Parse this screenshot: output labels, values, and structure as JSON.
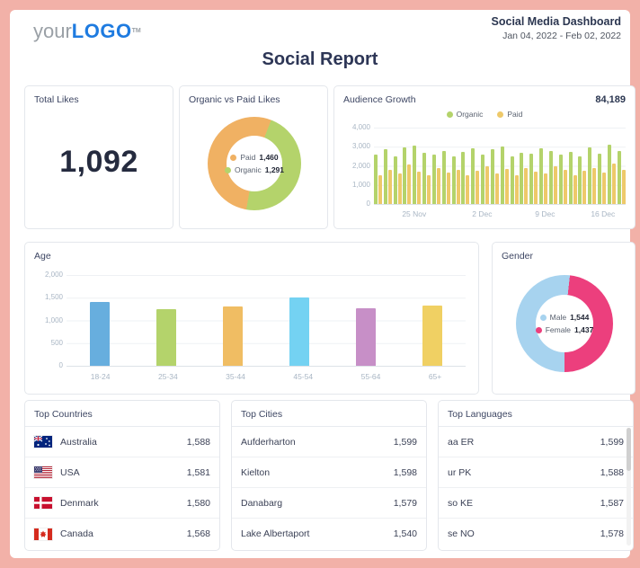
{
  "header": {
    "logo_prefix": "your",
    "logo_main": "LOGO",
    "logo_tm": "TM",
    "title": "Social Media Dashboard",
    "date_range": "Jan 04, 2022 - Feb 02, 2022"
  },
  "report_title": "Social Report",
  "total_likes": {
    "title": "Total Likes",
    "value": "1,092"
  },
  "chart_data": [
    {
      "id": "organic_vs_paid",
      "type": "pie",
      "title": "Organic vs Paid Likes",
      "legend_position": "center",
      "series": [
        {
          "name": "Paid",
          "value": 1460,
          "label": "1,460",
          "color": "#f0b163"
        },
        {
          "name": "Organic",
          "value": 1291,
          "label": "1,291",
          "color": "#b4d36b"
        }
      ]
    },
    {
      "id": "audience_growth",
      "type": "bar",
      "title": "Audience Growth",
      "total_label": "84,189",
      "ylim": [
        0,
        4000
      ],
      "yticks": [
        "0",
        "1,000",
        "2,000",
        "3,000",
        "4,000"
      ],
      "xticks": [
        {
          "label": "25 Nov",
          "pos": 16
        },
        {
          "label": "2 Dec",
          "pos": 43
        },
        {
          "label": "9 Dec",
          "pos": 68
        },
        {
          "label": "16 Dec",
          "pos": 91
        }
      ],
      "legend_position": "top",
      "grid": true,
      "series": [
        {
          "name": "Organic",
          "color": "#b4d36b",
          "values": [
            2600,
            2850,
            2500,
            2950,
            3050,
            2700,
            2600,
            2800,
            2500,
            2750,
            2900,
            2600,
            2850,
            3000,
            2500,
            2700,
            2650,
            2900,
            2800,
            2600,
            2750,
            2500,
            2950,
            2650,
            3100,
            2800
          ]
        },
        {
          "name": "Paid",
          "color": "#eec96a",
          "values": [
            1500,
            1800,
            1600,
            2050,
            1700,
            1500,
            1900,
            1650,
            1800,
            1500,
            1750,
            2000,
            1600,
            1850,
            1500,
            1900,
            1700,
            1600,
            2000,
            1800,
            1500,
            1750,
            1900,
            1650,
            2100,
            1800
          ]
        }
      ]
    },
    {
      "id": "age",
      "type": "bar",
      "title": "Age",
      "ylim": [
        0,
        2000
      ],
      "yticks": [
        "0",
        "500",
        "1,000",
        "1,500",
        "2,000"
      ],
      "grid": true,
      "categories": [
        "18-24",
        "25-34",
        "35-44",
        "45-54",
        "55-64",
        "65+"
      ],
      "values": [
        1400,
        1250,
        1310,
        1500,
        1260,
        1320
      ],
      "colors": [
        "#67aede",
        "#b4d36b",
        "#f0bd63",
        "#74d2f2",
        "#c78fc7",
        "#f0d063"
      ]
    },
    {
      "id": "gender",
      "type": "pie",
      "title": "Gender",
      "legend_position": "center",
      "series": [
        {
          "name": "Male",
          "value": 1544,
          "label": "1,544",
          "color": "#a7d3ef"
        },
        {
          "name": "Female",
          "value": 1437,
          "label": "1,437",
          "color": "#ec3f7d"
        }
      ]
    }
  ],
  "top_countries": {
    "title": "Top Countries",
    "rows": [
      {
        "flag": "flag-australia",
        "name": "Australia",
        "value": "1,588"
      },
      {
        "flag": "flag-usa",
        "name": "USA",
        "value": "1,581"
      },
      {
        "flag": "flag-denmark",
        "name": "Denmark",
        "value": "1,580"
      },
      {
        "flag": "flag-canada",
        "name": "Canada",
        "value": "1,568"
      }
    ]
  },
  "top_cities": {
    "title": "Top Cities",
    "rows": [
      {
        "name": "Aufderharton",
        "value": "1,599"
      },
      {
        "name": "Kielton",
        "value": "1,598"
      },
      {
        "name": "Danabarg",
        "value": "1,579"
      },
      {
        "name": "Lake Albertaport",
        "value": "1,540"
      }
    ]
  },
  "top_languages": {
    "title": "Top Languages",
    "rows": [
      {
        "name": "aa ER",
        "value": "1,599"
      },
      {
        "name": "ur PK",
        "value": "1,588"
      },
      {
        "name": "so KE",
        "value": "1,587"
      },
      {
        "name": "se NO",
        "value": "1,578"
      }
    ]
  },
  "colors": {
    "page_border": "#f2b1a8",
    "accent_navy": "#2d3656",
    "logo_blue": "#1e7be0"
  }
}
